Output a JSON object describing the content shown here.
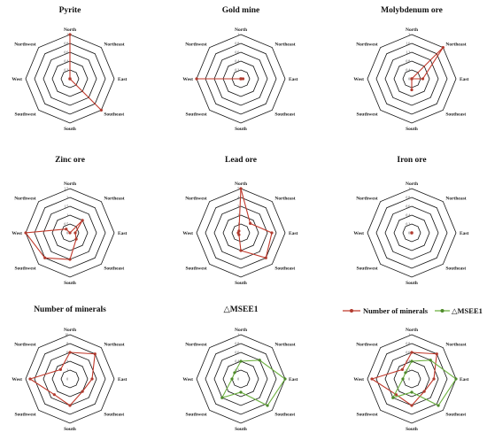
{
  "directions": [
    "North",
    "Northeast",
    "East",
    "Southeast",
    "South",
    "Southwest",
    "West",
    "Northwest"
  ],
  "colors": {
    "red": "#c0392b",
    "red_marker": "#b03a2e",
    "green": "#6aaf3d",
    "green_marker": "#4e8a2a",
    "grid": "#111111"
  },
  "legend": {
    "minerals": "Number of minerals",
    "msee": "△MSEE1"
  },
  "chart_data": [
    {
      "type": "radar",
      "title": "Pyrite",
      "ticks": [
        "0.2",
        "0.4",
        "0.6",
        "0.8",
        "1"
      ],
      "max": 1,
      "series": [
        {
          "color": "red",
          "values": [
            1,
            0,
            0,
            1,
            0,
            0,
            0,
            0
          ]
        }
      ]
    },
    {
      "type": "radar",
      "title": "Gold mine",
      "ticks": [
        "0.2",
        "0.4",
        "0.6",
        "0.8",
        "1"
      ],
      "max": 1,
      "series": [
        {
          "color": "red",
          "values": [
            0,
            0,
            0.05,
            0,
            0,
            0,
            1,
            0
          ]
        }
      ]
    },
    {
      "type": "radar",
      "title": "Molybdenum ore",
      "ticks": [
        "0",
        "0.4",
        "0.8",
        "1.2",
        "1.6",
        "2"
      ],
      "max": 2,
      "series": [
        {
          "color": "red",
          "values": [
            0,
            2,
            0.5,
            0,
            0.5,
            0,
            0,
            0
          ]
        }
      ]
    },
    {
      "type": "radar",
      "title": "Zinc ore",
      "ticks": [
        "0",
        "0.5",
        "1",
        "1.5",
        "2",
        "2.5"
      ],
      "max": 2.5,
      "series": [
        {
          "color": "red",
          "values": [
            0,
            1,
            0.3,
            0.5,
            1.5,
            2,
            2.5,
            0.3
          ]
        }
      ]
    },
    {
      "type": "radar",
      "title": "Lead ore",
      "ticks": [
        "0",
        "1",
        "2",
        "3",
        "4",
        "5"
      ],
      "max": 5,
      "series": [
        {
          "color": "red",
          "values": [
            5,
            1.5,
            3.5,
            4,
            2,
            0.3,
            0.3,
            0.3
          ]
        }
      ]
    },
    {
      "type": "radar",
      "title": "Iron ore",
      "ticks": [
        "0",
        "0.2",
        "0.4",
        "0.6",
        "0.8",
        "1"
      ],
      "max": 1,
      "series": [
        {
          "color": "red",
          "values": [
            0,
            0,
            0,
            0,
            0,
            0,
            0,
            0
          ]
        }
      ]
    },
    {
      "type": "radar",
      "title": "Number of minerals",
      "ticks": [
        "0",
        "2",
        "4",
        "6",
        "8",
        "10"
      ],
      "max": 10,
      "series": [
        {
          "color": "red",
          "values": [
            6,
            8,
            5,
            4,
            6,
            5,
            9,
            3
          ]
        }
      ]
    },
    {
      "type": "radar",
      "title": "△MSEE1",
      "ticks": [
        "0",
        "0.2",
        "0.4",
        "0.6",
        "0.8",
        "1"
      ],
      "max": 1,
      "series": [
        {
          "color": "green",
          "values": [
            0.4,
            0.6,
            1,
            0.85,
            0.3,
            0.6,
            0.2,
            0.2
          ]
        }
      ]
    },
    {
      "type": "radar",
      "title": "",
      "ticks": [
        "0",
        "0.2",
        "0.4",
        "0.6",
        "0.8",
        "1"
      ],
      "max": 1,
      "series": [
        {
          "color": "red",
          "values": [
            0.6,
            0.8,
            0.5,
            0.4,
            0.6,
            0.5,
            0.9,
            0.3
          ]
        },
        {
          "color": "green",
          "values": [
            0.4,
            0.6,
            1,
            0.85,
            0.3,
            0.6,
            0.2,
            0.2
          ]
        }
      ]
    }
  ]
}
